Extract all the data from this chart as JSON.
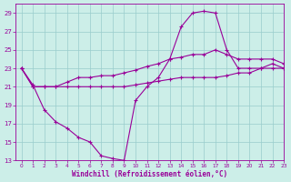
{
  "bg_color": "#cceee8",
  "grid_color": "#99cccc",
  "line_color": "#990099",
  "xlim": [
    -0.5,
    23
  ],
  "ylim": [
    13,
    30
  ],
  "xticks": [
    0,
    1,
    2,
    3,
    4,
    5,
    6,
    7,
    8,
    9,
    10,
    11,
    12,
    13,
    14,
    15,
    16,
    17,
    18,
    19,
    20,
    21,
    22,
    23
  ],
  "yticks": [
    13,
    15,
    17,
    19,
    21,
    23,
    25,
    27,
    29
  ],
  "xlabel": "Windchill (Refroidissement éolien,°C)",
  "series1_x": [
    0,
    1,
    2,
    3,
    4,
    5,
    6,
    7,
    8,
    9,
    10,
    11,
    12,
    13,
    14,
    15,
    16,
    17,
    18,
    19,
    20,
    21,
    22,
    23
  ],
  "series1_y": [
    23,
    21,
    21,
    21,
    21,
    21,
    21,
    21,
    21,
    21,
    21.2,
    21.4,
    21.6,
    21.8,
    22,
    22,
    22,
    22,
    22.2,
    22.5,
    22.5,
    23,
    23,
    23
  ],
  "series2_x": [
    0,
    1,
    2,
    3,
    4,
    5,
    6,
    7,
    8,
    9,
    10,
    11,
    12,
    13,
    14,
    15,
    16,
    17,
    18,
    19,
    20,
    21,
    22,
    23
  ],
  "series2_y": [
    23,
    21,
    21,
    21,
    21.5,
    22,
    22,
    22.2,
    22.2,
    22.5,
    22.8,
    23.2,
    23.5,
    24,
    24.2,
    24.5,
    24.5,
    25,
    24.5,
    24,
    24,
    24,
    24,
    23.5
  ],
  "series3_x": [
    0,
    1,
    2,
    3,
    4,
    5,
    6,
    7,
    8,
    9,
    10,
    11,
    12,
    13,
    14,
    15,
    16,
    17,
    18,
    19,
    20,
    21,
    22,
    23
  ],
  "series3_y": [
    23,
    21.2,
    18.5,
    17.2,
    16.5,
    15.5,
    15,
    13.5,
    13.2,
    13,
    19.5,
    21,
    22,
    24,
    27.5,
    29,
    29.2,
    29,
    25,
    23,
    23,
    23,
    23.5,
    23
  ]
}
